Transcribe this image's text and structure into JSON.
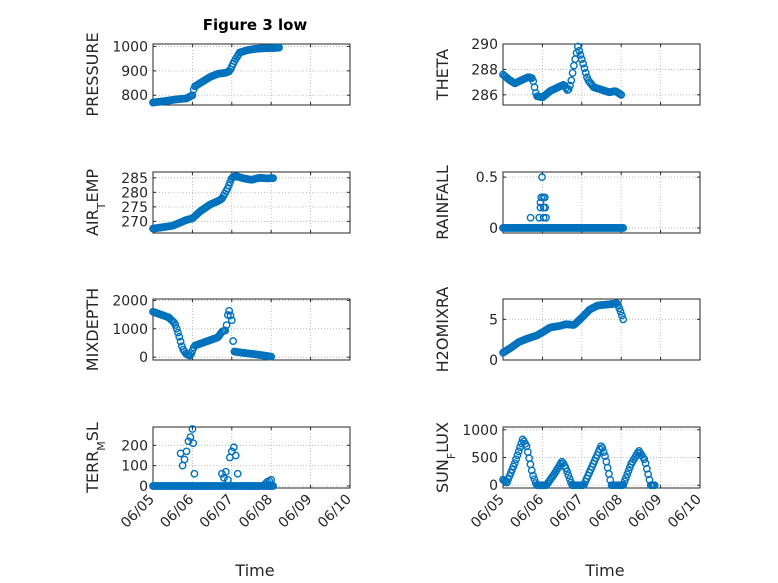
{
  "colors": {
    "marker": "#0072BD",
    "axis": "#262626",
    "grid": "#b0b0b0",
    "background": "#ffffff"
  },
  "figure": {
    "title": "Figure 3 low",
    "xlabel": "Time"
  },
  "chart_data": [
    {
      "type": "scatter",
      "title": "Figure 3 low",
      "ylabel": "PRESSURE",
      "ylabel_sub": "",
      "ylabel_tail": "",
      "ylim": [
        760,
        1010
      ],
      "yticks": [
        800,
        900,
        1000
      ],
      "ytick_labels": [
        "800",
        "900",
        "1000"
      ],
      "xlim": [
        0,
        5
      ],
      "x_tick_labels": [],
      "grid": true,
      "anchors": [
        [
          0,
          770
        ],
        [
          0.25,
          775
        ],
        [
          0.6,
          783
        ],
        [
          0.85,
          787
        ],
        [
          1,
          800
        ],
        [
          1.05,
          835
        ],
        [
          1.25,
          855
        ],
        [
          1.45,
          875
        ],
        [
          1.65,
          888
        ],
        [
          1.85,
          892
        ],
        [
          1.95,
          900
        ],
        [
          2.05,
          935
        ],
        [
          2.2,
          975
        ],
        [
          2.4,
          985
        ],
        [
          2.6,
          990
        ],
        [
          2.85,
          993
        ],
        [
          3.0,
          993
        ],
        [
          3.2,
          995
        ]
      ]
    },
    {
      "type": "scatter",
      "title": "",
      "ylabel": "THETA",
      "ylabel_sub": "",
      "ylabel_tail": "",
      "ylim": [
        285.2,
        290
      ],
      "yticks": [
        286,
        288,
        290
      ],
      "ytick_labels": [
        "286",
        "288",
        "290"
      ],
      "xlim": [
        0,
        5
      ],
      "x_tick_labels": [],
      "grid": true,
      "anchors": [
        [
          0,
          287.6
        ],
        [
          0.15,
          287.2
        ],
        [
          0.3,
          286.9
        ],
        [
          0.5,
          287.2
        ],
        [
          0.65,
          287.4
        ],
        [
          0.75,
          287.3
        ],
        [
          0.85,
          285.9
        ],
        [
          1.0,
          285.8
        ],
        [
          1.2,
          286.3
        ],
        [
          1.4,
          286.6
        ],
        [
          1.55,
          286.8
        ],
        [
          1.65,
          286.3
        ],
        [
          1.72,
          286.9
        ],
        [
          1.8,
          288.3
        ],
        [
          1.9,
          289.8
        ],
        [
          2.0,
          288.8
        ],
        [
          2.15,
          287.2
        ],
        [
          2.3,
          286.6
        ],
        [
          2.5,
          286.4
        ],
        [
          2.7,
          286.2
        ],
        [
          2.85,
          286.3
        ],
        [
          3.0,
          286.0
        ]
      ]
    },
    {
      "type": "scatter",
      "title": "",
      "ylabel": "AIR",
      "ylabel_sub": "T",
      "ylabel_tail": "EMP",
      "ylim": [
        266,
        287
      ],
      "yticks": [
        270,
        275,
        280,
        285
      ],
      "ytick_labels": [
        "270",
        "275",
        "280",
        "285"
      ],
      "xlim": [
        0,
        5
      ],
      "x_tick_labels": [],
      "grid": true,
      "anchors": [
        [
          0,
          267.5
        ],
        [
          0.5,
          268.5
        ],
        [
          0.85,
          270.5
        ],
        [
          1.0,
          271.0
        ],
        [
          1.2,
          273.5
        ],
        [
          1.45,
          275.8
        ],
        [
          1.65,
          277.0
        ],
        [
          1.75,
          277.8
        ],
        [
          1.9,
          281.5
        ],
        [
          2.0,
          285.0
        ],
        [
          2.1,
          285.6
        ],
        [
          2.3,
          284.8
        ],
        [
          2.5,
          284.3
        ],
        [
          2.7,
          285.0
        ],
        [
          2.9,
          284.8
        ],
        [
          3.05,
          284.9
        ]
      ]
    },
    {
      "type": "scatter",
      "title": "",
      "ylabel": "RAINFALL",
      "ylabel_sub": "",
      "ylabel_tail": "",
      "ylim": [
        -0.05,
        0.55
      ],
      "yticks": [
        0,
        0.5
      ],
      "ytick_labels": [
        "0",
        "0.5"
      ],
      "xlim": [
        0,
        5
      ],
      "x_tick_labels": [],
      "grid": true,
      "anchors": [
        [
          0,
          0
        ],
        [
          3.05,
          0
        ]
      ],
      "extra_points": [
        [
          0.7,
          0.1
        ],
        [
          0.92,
          0.1
        ],
        [
          0.95,
          0.2
        ],
        [
          0.95,
          0.25
        ],
        [
          0.97,
          0.3
        ],
        [
          0.99,
          0.5
        ],
        [
          1.02,
          0.3
        ],
        [
          1.03,
          0.2
        ],
        [
          1.03,
          0.1
        ],
        [
          1.06,
          0.3
        ],
        [
          1.07,
          0.2
        ],
        [
          1.09,
          0.1
        ]
      ]
    },
    {
      "type": "scatter",
      "title": "",
      "ylabel": "MIXDEPTH",
      "ylabel_sub": "",
      "ylabel_tail": "",
      "ylim": [
        -100,
        2050
      ],
      "yticks": [
        0,
        1000,
        2000
      ],
      "ytick_labels": [
        "0",
        "1000",
        "2000"
      ],
      "xlim": [
        0,
        5
      ],
      "x_tick_labels": [],
      "grid": true,
      "anchors": [
        [
          0,
          1600
        ],
        [
          0.2,
          1500
        ],
        [
          0.4,
          1400
        ],
        [
          0.55,
          1200
        ],
        [
          0.65,
          800
        ],
        [
          0.75,
          300
        ],
        [
          0.85,
          100
        ],
        [
          0.95,
          50
        ],
        [
          1.05,
          400
        ],
        [
          1.25,
          500
        ],
        [
          1.45,
          600
        ],
        [
          1.65,
          700
        ],
        [
          1.75,
          900
        ],
        [
          1.85,
          950
        ],
        [
          1.92,
          1700
        ],
        [
          2.0,
          1300
        ],
        [
          2.05,
          200
        ],
        [
          2.3,
          150
        ],
        [
          2.6,
          100
        ],
        [
          2.85,
          50
        ],
        [
          3.0,
          20
        ]
      ]
    },
    {
      "type": "scatter",
      "title": "",
      "ylabel": "H2OMIXRA",
      "ylabel_sub": "",
      "ylabel_tail": "",
      "ylim": [
        0,
        7.5
      ],
      "yticks": [
        0,
        5
      ],
      "ytick_labels": [
        "0",
        "5"
      ],
      "xlim": [
        0,
        5
      ],
      "x_tick_labels": [],
      "grid": true,
      "anchors": [
        [
          0,
          0.9
        ],
        [
          0.2,
          1.5
        ],
        [
          0.4,
          2.2
        ],
        [
          0.6,
          2.6
        ],
        [
          0.85,
          3.0
        ],
        [
          1.0,
          3.4
        ],
        [
          1.2,
          4.0
        ],
        [
          1.45,
          4.2
        ],
        [
          1.6,
          4.4
        ],
        [
          1.8,
          4.3
        ],
        [
          2.0,
          5.2
        ],
        [
          2.2,
          6.2
        ],
        [
          2.4,
          6.7
        ],
        [
          2.6,
          6.8
        ],
        [
          2.8,
          6.9
        ],
        [
          2.9,
          7.0
        ],
        [
          2.98,
          6.0
        ],
        [
          3.05,
          5.0
        ]
      ]
    },
    {
      "type": "scatter",
      "title": "",
      "ylabel": "TERR",
      "ylabel_sub": "M",
      "ylabel_tail": "SL",
      "ylim": [
        -10,
        290
      ],
      "yticks": [
        0,
        100,
        200
      ],
      "ytick_labels": [
        "0",
        "100",
        "200"
      ],
      "xlim": [
        0,
        5
      ],
      "x_tick_labels": [
        "06/05",
        "06/06",
        "06/07",
        "06/08",
        "06/09",
        "06/10"
      ],
      "grid": true,
      "anchors": [
        [
          0,
          0
        ],
        [
          3.05,
          0
        ]
      ],
      "extra_points": [
        [
          0.7,
          160
        ],
        [
          0.75,
          100
        ],
        [
          0.8,
          130
        ],
        [
          0.85,
          170
        ],
        [
          0.9,
          220
        ],
        [
          0.95,
          240
        ],
        [
          1.0,
          280
        ],
        [
          1.02,
          210
        ],
        [
          1.05,
          60
        ],
        [
          1.75,
          60
        ],
        [
          1.8,
          40
        ],
        [
          1.85,
          70
        ],
        [
          1.9,
          30
        ],
        [
          1.95,
          140
        ],
        [
          2.0,
          170
        ],
        [
          2.05,
          190
        ],
        [
          2.1,
          150
        ],
        [
          2.15,
          60
        ],
        [
          2.85,
          10
        ],
        [
          2.9,
          20
        ],
        [
          2.95,
          25
        ],
        [
          3.0,
          30
        ]
      ]
    },
    {
      "type": "scatter",
      "title": "",
      "ylabel": "SUN",
      "ylabel_sub": "F",
      "ylabel_tail": "LUX",
      "ylim": [
        -50,
        1050
      ],
      "yticks": [
        0,
        500,
        1000
      ],
      "ytick_labels": [
        "0",
        "500",
        "1000"
      ],
      "xlim": [
        0,
        5
      ],
      "x_tick_labels": [
        "06/05",
        "06/06",
        "06/07",
        "06/08",
        "06/09",
        "06/10"
      ],
      "grid": true,
      "anchors": [
        [
          0,
          100
        ],
        [
          0.1,
          50
        ],
        [
          0.3,
          400
        ],
        [
          0.5,
          830
        ],
        [
          0.6,
          700
        ],
        [
          0.75,
          200
        ],
        [
          0.85,
          0
        ],
        [
          1.1,
          0
        ],
        [
          1.3,
          200
        ],
        [
          1.5,
          430
        ],
        [
          1.6,
          300
        ],
        [
          1.75,
          0
        ],
        [
          2.05,
          0
        ],
        [
          2.3,
          400
        ],
        [
          2.5,
          720
        ],
        [
          2.6,
          500
        ],
        [
          2.75,
          0
        ],
        [
          3.05,
          0
        ],
        [
          3.25,
          380
        ],
        [
          3.45,
          620
        ],
        [
          3.6,
          450
        ],
        [
          3.75,
          0
        ],
        [
          3.85,
          0
        ]
      ]
    }
  ]
}
